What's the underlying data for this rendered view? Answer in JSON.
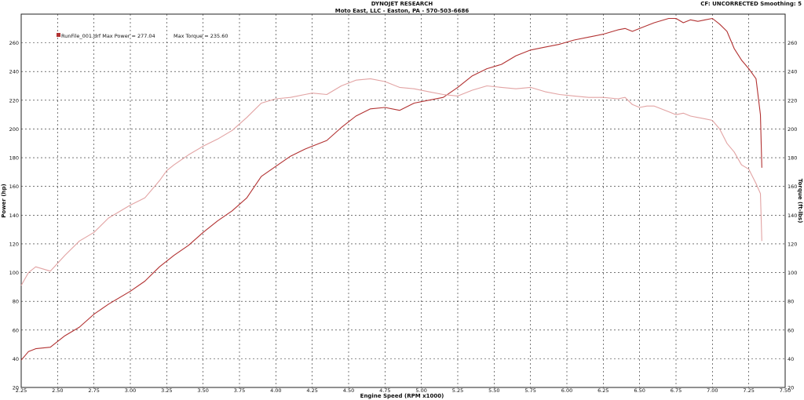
{
  "header": {
    "title": "DYNOJET RESEARCH",
    "subtitle": "Moto East, LLC - Easton, PA - 570-503-6686",
    "info": "CF: UNCORRECTED  Smoothing: 5"
  },
  "legend": {
    "run_label": "RunFile_001.drf Max Power = 277.04",
    "torque_label": "Max Torque = 235.60"
  },
  "colors": {
    "power": "#b23232",
    "torque": "#e2a3a3",
    "grid": "#222222"
  },
  "chart_data": {
    "type": "line",
    "xlabel": "Engine Speed (RPM x1000)",
    "ylabel": "Power (hp)",
    "y2label": "Torque (ft-lbs)",
    "xlim": [
      2.25,
      7.5
    ],
    "ylim": [
      20,
      280
    ],
    "y2lim": [
      20,
      280
    ],
    "x_ticks": [
      "2.25",
      "2.50",
      "2.75",
      "3.00",
      "3.25",
      "3.50",
      "3.75",
      "4.00",
      "4.25",
      "4.50",
      "4.75",
      "5.00",
      "5.25",
      "5.50",
      "5.75",
      "6.00",
      "6.25",
      "6.50",
      "6.75",
      "7.00",
      "7.25",
      "7.50"
    ],
    "y_ticks": [
      "20",
      "40",
      "60",
      "80",
      "100",
      "120",
      "140",
      "160",
      "180",
      "200",
      "220",
      "240",
      "260"
    ],
    "grid": true,
    "series": [
      {
        "name": "Power",
        "x": [
          2.25,
          2.3,
          2.35,
          2.45,
          2.55,
          2.65,
          2.75,
          2.85,
          3.0,
          3.1,
          3.2,
          3.25,
          3.3,
          3.4,
          3.5,
          3.6,
          3.7,
          3.8,
          3.9,
          4.0,
          4.1,
          4.2,
          4.25,
          4.35,
          4.45,
          4.55,
          4.65,
          4.75,
          4.85,
          4.95,
          5.05,
          5.15,
          5.25,
          5.35,
          5.45,
          5.55,
          5.65,
          5.75,
          5.85,
          5.95,
          6.05,
          6.15,
          6.25,
          6.35,
          6.4,
          6.45,
          6.5,
          6.55,
          6.6,
          6.7,
          6.75,
          6.8,
          6.85,
          6.9,
          6.95,
          7.0,
          7.05,
          7.1,
          7.15,
          7.2,
          7.25,
          7.3,
          7.33,
          7.34
        ],
        "values": [
          39,
          45,
          47,
          48,
          56,
          62,
          71,
          78,
          87,
          94,
          104,
          108,
          112,
          119,
          128,
          136,
          143,
          152,
          167,
          174,
          181,
          186,
          188,
          192,
          201,
          209,
          214,
          215,
          213,
          218,
          220,
          222,
          229,
          237,
          242,
          245,
          251,
          255,
          257,
          259,
          262,
          264,
          266,
          269,
          270,
          268,
          270,
          272,
          274,
          277,
          277,
          274,
          276,
          275,
          276,
          277,
          273,
          268,
          256,
          248,
          242,
          235,
          210,
          173
        ],
        "color": "#b23232"
      },
      {
        "name": "Torque",
        "x": [
          2.25,
          2.3,
          2.35,
          2.45,
          2.55,
          2.65,
          2.75,
          2.85,
          3.0,
          3.1,
          3.2,
          3.25,
          3.3,
          3.4,
          3.5,
          3.6,
          3.7,
          3.8,
          3.9,
          4.0,
          4.1,
          4.2,
          4.25,
          4.35,
          4.45,
          4.55,
          4.65,
          4.75,
          4.85,
          4.95,
          5.05,
          5.15,
          5.25,
          5.35,
          5.45,
          5.55,
          5.65,
          5.75,
          5.85,
          5.95,
          6.05,
          6.15,
          6.25,
          6.35,
          6.4,
          6.45,
          6.5,
          6.55,
          6.6,
          6.7,
          6.75,
          6.8,
          6.85,
          6.9,
          6.95,
          7.0,
          7.05,
          7.1,
          7.15,
          7.2,
          7.25,
          7.3,
          7.33,
          7.34
        ],
        "values": [
          91,
          100,
          104,
          101,
          112,
          122,
          128,
          138,
          147,
          152,
          164,
          171,
          175,
          182,
          188,
          193,
          199,
          208,
          218,
          221,
          222,
          224,
          225,
          224,
          230,
          234,
          235,
          233,
          229,
          228,
          226,
          224,
          223,
          227,
          230,
          229,
          228,
          229,
          226,
          224,
          223,
          222,
          222,
          221,
          222,
          217,
          215,
          216,
          216,
          212,
          210,
          211,
          209,
          208,
          207,
          206,
          200,
          190,
          184,
          175,
          172,
          162,
          155,
          122
        ],
        "color": "#e2a3a3"
      }
    ]
  }
}
